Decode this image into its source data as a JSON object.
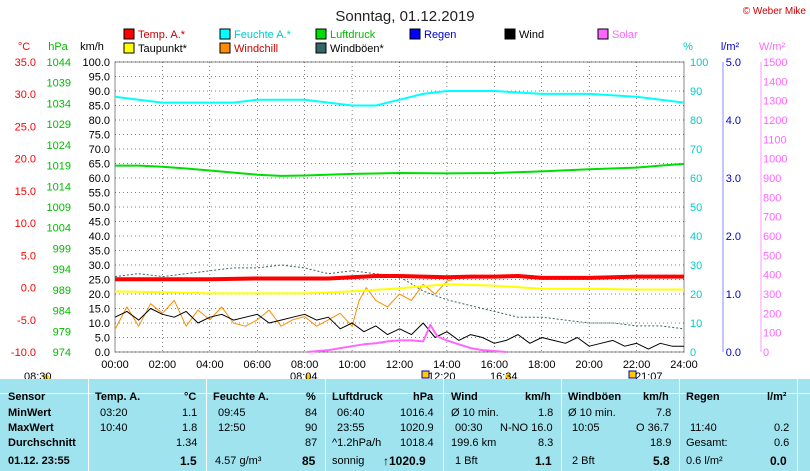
{
  "title": "Sonntag, 01.12.2019",
  "copyright": "© Weber Mike",
  "colors": {
    "temp": "#ff0000",
    "humidity": "#00ffff",
    "pressure": "#00dd00",
    "dewpoint": "#ffff00",
    "windchill": "#ff8c00",
    "gust": "#336666",
    "rain": "#0000ff",
    "wind": "#000000",
    "solar": "#ff66ff",
    "axis_temp": "#ff0000",
    "axis_hpa": "#00bb00",
    "axis_hum": "#00cccc",
    "axis_rain": "#0000cc",
    "axis_solar": "#ff66ff",
    "summary_bg": "#9fe3ef"
  },
  "legend": [
    {
      "label": "Temp. A.*",
      "color": "#ff0000"
    },
    {
      "label": "Feuchte A.*",
      "color": "#00ffff"
    },
    {
      "label": "Luftdruck",
      "color": "#00dd00"
    },
    {
      "label": "Regen",
      "color": "#0000ff"
    },
    {
      "label": "Wind",
      "color": "#000000"
    },
    {
      "label": "Solar",
      "color": "#ff66ff"
    },
    {
      "label": "Taupunkt*",
      "color": "#ffff00"
    },
    {
      "label": "Windchill",
      "color": "#ff8c00"
    },
    {
      "label": "Windböen*",
      "color": "#336666"
    }
  ],
  "axis_units": {
    "temp": "°C",
    "pressure": "hPa",
    "wind": "km/h",
    "humidity": "%",
    "rain": "l/m²",
    "solar": "W/m²"
  },
  "events": [
    {
      "label": "08:30",
      "kind": "sunrise"
    },
    {
      "label": "08:04",
      "kind": "sun"
    },
    {
      "label": "12:20",
      "kind": "icon"
    },
    {
      "label": "16:34",
      "kind": "sun"
    },
    {
      "label": "21:07",
      "kind": "icon"
    }
  ],
  "chart_data": {
    "type": "line",
    "x_ticks": [
      "00:00",
      "02:00",
      "04:00",
      "06:00",
      "08:00",
      "10:00",
      "12:00",
      "14:00",
      "16:00",
      "18:00",
      "20:00",
      "22:00",
      "24:00"
    ],
    "xlim": [
      0,
      24
    ],
    "y_axes": {
      "temp": {
        "ticks": [
          "35.0",
          "30.0",
          "25.0",
          "20.0",
          "15.0",
          "10.0",
          "5.0",
          "0.0",
          "-5.0",
          "-10.0"
        ],
        "ylim": [
          -10,
          35
        ]
      },
      "pressure": {
        "ticks": [
          "1044",
          "1039",
          "1034",
          "1029",
          "1024",
          "1019",
          "1014",
          "1009",
          "1004",
          "999",
          "994",
          "989",
          "984",
          "979",
          "974"
        ],
        "ylim": [
          974,
          1044
        ]
      },
      "wind": {
        "ticks": [
          "100.0",
          "95.0",
          "90.0",
          "85.0",
          "80.0",
          "75.0",
          "70.0",
          "65.0",
          "60.0",
          "55.0",
          "50.0",
          "45.0",
          "40.0",
          "35.0",
          "30.0",
          "25.0",
          "20.0",
          "15.0",
          "10.0",
          "5.0",
          "0.0"
        ],
        "ylim": [
          0,
          100
        ]
      },
      "humidity": {
        "ticks": [
          "100",
          "90",
          "80",
          "70",
          "60",
          "50",
          "40",
          "30",
          "20",
          "10",
          "0"
        ],
        "ylim": [
          0,
          100
        ]
      },
      "rain": {
        "ticks": [
          "5.0",
          "4.0",
          "3.0",
          "2.0",
          "1.0",
          "0.0"
        ],
        "ylim": [
          0,
          5
        ]
      },
      "solar": {
        "ticks": [
          "1500",
          "1400",
          "1300",
          "1200",
          "1100",
          "1000",
          "900",
          "800",
          "700",
          "600",
          "500",
          "400",
          "300",
          "200",
          "100",
          "0"
        ],
        "ylim": [
          0,
          1500
        ]
      }
    },
    "series": [
      {
        "name": "Temp. A.*",
        "axis": "temp",
        "x": [
          0,
          2,
          4,
          6,
          8,
          9,
          10,
          11,
          12,
          13,
          14,
          15,
          16,
          17,
          18,
          20,
          22,
          24
        ],
        "y": [
          1.3,
          1.3,
          1.3,
          1.4,
          1.4,
          1.4,
          1.6,
          1.8,
          1.8,
          1.7,
          1.6,
          1.7,
          1.7,
          1.8,
          1.5,
          1.5,
          1.7,
          1.7
        ]
      },
      {
        "name": "Feuchte A.*",
        "axis": "humidity",
        "x": [
          0,
          1,
          2,
          4,
          5,
          6,
          8,
          9,
          10,
          11,
          12,
          13,
          14,
          15,
          16,
          18,
          20,
          22,
          24
        ],
        "y": [
          88,
          87,
          86,
          86,
          86,
          87,
          87,
          86,
          85,
          85,
          87,
          89,
          90,
          90,
          90,
          89,
          89,
          88,
          86
        ]
      },
      {
        "name": "Luftdruck",
        "axis": "pressure",
        "x": [
          0,
          1,
          2,
          3,
          4,
          5,
          6,
          7,
          8,
          10,
          12,
          14,
          16,
          18,
          20,
          22,
          23,
          24
        ],
        "y": [
          1019.0,
          1019.0,
          1018.7,
          1018.3,
          1017.8,
          1017.3,
          1016.8,
          1016.5,
          1016.6,
          1017.0,
          1017.2,
          1017.1,
          1017.2,
          1017.6,
          1018.1,
          1018.5,
          1019.0,
          1019.4
        ]
      },
      {
        "name": "Taupunkt*",
        "axis": "temp",
        "x": [
          0,
          2,
          4,
          6,
          8,
          10,
          12,
          14,
          16,
          18,
          20,
          22,
          24
        ],
        "y": [
          -0.6,
          -0.7,
          -0.9,
          -0.9,
          -0.9,
          -0.6,
          -0.1,
          0.5,
          0.3,
          -0.2,
          -0.2,
          -0.3,
          -0.3
        ]
      },
      {
        "name": "Windchill",
        "axis": "temp",
        "x": [
          0,
          0.5,
          1,
          1.5,
          2,
          2.5,
          3,
          3.5,
          4,
          4.5,
          5,
          5.5,
          6,
          6.5,
          7,
          7.5,
          8,
          8.5,
          9,
          9.5,
          10,
          10.3,
          10.6,
          11,
          11.5,
          12,
          12.5,
          13,
          13.5,
          14,
          14.2
        ],
        "y": [
          -6.5,
          -3,
          -6,
          -2.5,
          -4,
          -2,
          -6,
          -3.5,
          -5,
          -3,
          -5.5,
          -6,
          -5,
          -3.5,
          -6,
          -5,
          -4.5,
          -6,
          -5,
          -4,
          -6,
          -2,
          0,
          -2,
          -3,
          -1,
          -2,
          0.5,
          -1,
          1,
          1.2
        ]
      },
      {
        "name": "Wind",
        "axis": "wind",
        "x": [
          0,
          0.5,
          1,
          1.5,
          2,
          2.5,
          3,
          3.5,
          4,
          4.5,
          5,
          5.5,
          6,
          6.5,
          7,
          7.5,
          8,
          8.5,
          9,
          9.5,
          10,
          10.5,
          11,
          11.5,
          12,
          12.5,
          13,
          13.5,
          14,
          14.5,
          15,
          15.5,
          16,
          16.5,
          17,
          17.5,
          18,
          18.5,
          19,
          19.5,
          20,
          20.5,
          21,
          21.5,
          22,
          22.5,
          23,
          23.5,
          24
        ],
        "y": [
          12,
          14,
          11,
          15,
          13,
          12,
          14,
          10,
          12,
          13,
          11,
          12,
          13,
          10,
          11,
          12,
          13,
          11,
          12,
          8,
          10,
          7,
          9,
          6,
          8,
          6,
          10,
          5,
          7,
          4,
          6,
          5,
          3,
          4,
          6,
          3,
          5,
          4,
          3,
          5,
          2,
          3,
          4,
          2,
          3,
          1,
          3,
          2,
          2
        ]
      },
      {
        "name": "Windböen*",
        "axis": "wind",
        "x": [
          0,
          1,
          2,
          3,
          4,
          5,
          6,
          7,
          8,
          9,
          10,
          11,
          12,
          13,
          14,
          15,
          16,
          17,
          18,
          19,
          20,
          21,
          22,
          23,
          24
        ],
        "y": [
          26,
          27,
          26,
          27,
          28,
          29,
          29,
          30,
          29,
          27,
          28,
          27,
          26,
          21,
          18,
          16,
          14,
          12,
          12,
          11,
          10,
          10,
          9,
          9,
          8
        ]
      },
      {
        "name": "Solar",
        "axis": "solar",
        "x": [
          8.1,
          9,
          10,
          10.5,
          11,
          11.5,
          12,
          12.5,
          13,
          13.3,
          13.6,
          14,
          14.5,
          15,
          15.5,
          16,
          16.5
        ],
        "y": [
          0,
          10,
          30,
          40,
          45,
          55,
          60,
          60,
          55,
          140,
          80,
          60,
          40,
          20,
          10,
          5,
          0
        ]
      },
      {
        "name": "Regen",
        "axis": "rain",
        "x": [],
        "y": []
      }
    ]
  },
  "summary": {
    "row_labels": [
      "Sensor",
      "MinWert",
      "MaxWert",
      "Durchschnitt",
      "01.12. 23:55"
    ],
    "temp": {
      "header": "Temp. A.",
      "unit": "°C",
      "min_time": "03:20",
      "min": "1.1",
      "max_time": "10:40",
      "max": "1.8",
      "avg": "1.34",
      "current": "1.5"
    },
    "hum": {
      "header": "Feuchte A.",
      "unit": "%",
      "min_time": "09:45",
      "min": "84",
      "max_time": "12:50",
      "max": "90",
      "avg": "87",
      "abs": "4.57 g/m³",
      "current": "85"
    },
    "press": {
      "header": "Luftdruck",
      "unit": "hPa",
      "min_time": "06:40",
      "min": "1016.4",
      "max_time": "23:55",
      "max": "1020.9",
      "trend": "^1.2hPa/h",
      "avg": "1018.4",
      "forecast": "sonnig",
      "current": "↑1020.9"
    },
    "wind": {
      "header": "Wind",
      "unit": "km/h",
      "r1a": "Ø 10 min.",
      "r1b": "1.8",
      "r2a": "00:30",
      "r2b": "N-NO 16.0",
      "r3a": "199.6 km",
      "r3b": "8.3",
      "r4a": "1 Bft",
      "r4b": "1.1"
    },
    "gust": {
      "header": "Windböen",
      "unit": "km/h",
      "r1a": "Ø 10 min.",
      "r1b": "7.8",
      "r2a": "10:05",
      "r2b": "O 36.7",
      "r3b": "18.9",
      "r4a": "2 Bft",
      "r4b": "5.8"
    },
    "rain": {
      "header": "Regen",
      "unit": "l/m²",
      "r2a": "11:40",
      "r2b": "0.2",
      "r3a": "Gesamt:",
      "r3b": "0.6",
      "r4a": "0.6 l/m²",
      "r4b": "0.0"
    }
  }
}
